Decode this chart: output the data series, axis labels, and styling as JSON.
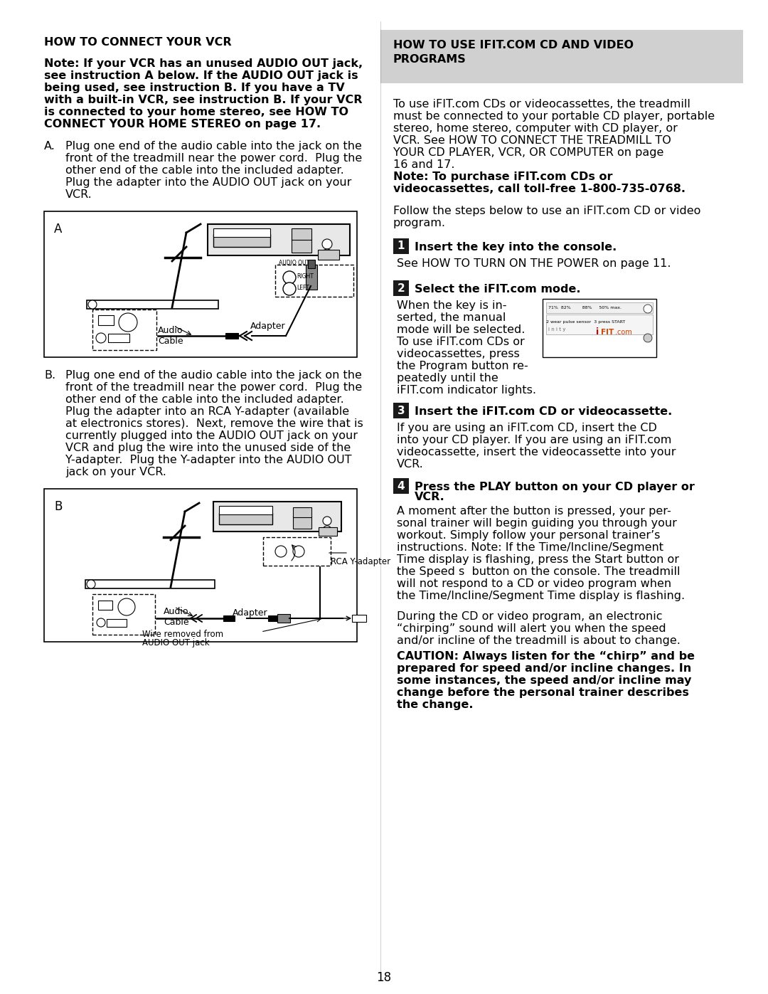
{
  "page_number": "18",
  "bg_color": "#ffffff",
  "left_col": {
    "title": "HOW TO CONNECT YOUR VCR",
    "note_bold": "Note: If your VCR has an unused AUDIO OUT jack, see instruction A below. If the AUDIO OUT jack is being used, see instruction B. If you have a TV with a built-in VCR, see instruction B. If your VCR is connected to your home stereo, see HOW TO CONNECT YOUR HOME STEREO on page 17.",
    "instruction_a_label": "A.",
    "instruction_a_text": "Plug one end of the audio cable into the jack on the front of the treadmill near the power cord. Plug the other end of the cable into the included adapter. Plug the adapter into the AUDIO OUT jack on your VCR.",
    "instruction_b_label": "B.",
    "instruction_b_text": "Plug one end of the audio cable into the jack on the front of the treadmill near the power cord. Plug the other end of the cable into the included adapter. Plug the adapter into an RCA Y-adapter (available at electronics stores). Next, remove the wire that is currently plugged into the AUDIO OUT jack on your VCR and plug the wire into the unused side of the Y-adapter. Plug the Y-adapter into the AUDIO OUT jack on your VCR."
  },
  "right_col": {
    "box_title_line1": "HOW TO USE IFIT.COM CD AND VIDEO",
    "box_title_line2": "PROGRAMS",
    "box_bg": "#d0d0d0",
    "intro_text": "To use iFIT.com CDs or videocassettes, the treadmill must be connected to your portable CD player, portable stereo, home stereo, computer with CD player, or VCR. See HOW TO CONNECT THE TREADMILL TO YOUR CD PLAYER, VCR, OR COMPUTER on page 16 and 17.",
    "note_bold_right": "Note: To purchase iFIT.com CDs or videocassettes, call toll-free 1-800-735-0768.",
    "follow_text": "Follow the steps below to use an iFIT.com CD or video program.",
    "step1_num": "1",
    "step1_title": "Insert the key into the console.",
    "step1_text": "See HOW TO TURN ON THE POWER on page 11.",
    "step2_num": "2",
    "step2_title": "Select the iFIT.com mode.",
    "step2_text": "When the key is inserted, the manual mode will be selected. To use iFIT.com CDs or videocassettes, press the Program button repeatedly until the iFIT.com indicator lights.",
    "step3_num": "3",
    "step3_title": "Insert the iFIT.com CD or videocassette.",
    "step3_text": "If you are using an iFIT.com CD, insert the CD into your CD player. If you are using an iFIT.com videocassette, insert the videocassette into your VCR.",
    "step4_num": "4",
    "step4_title_bold": "Press the PLAY button on your CD player or",
    "step4_title_bold2": "VCR.",
    "step4_text": "A moment after the button is pressed, your personal trainer will begin guiding you through your workout. Simply follow your personal trainer’s instructions. Note: If the Time/Incline/Segment Time display is flashing, press the Start button or the Speed s button on the console. The treadmill will not respond to a CD or video program when the Time/Incline/Segment Time display is flashing.",
    "caution_normal": "During the CD or video program, an electronic “chirping” sound will alert you when the speed and/or incline of the treadmill is about to change.",
    "caution_bold": "CAUTION: Always listen for the “chirp” and be prepared for speed and/or incline changes. In some instances, the speed and/or incline may change before the personal trainer describes the change."
  }
}
